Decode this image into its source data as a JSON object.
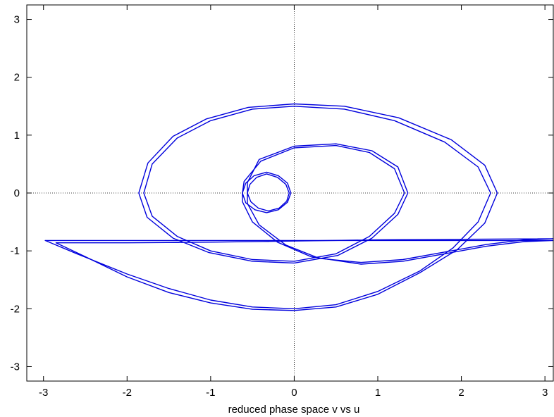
{
  "chart_data": {
    "type": "line",
    "title": "",
    "xlabel": "reduced phase space v vs u",
    "ylabel": "",
    "xlim": [
      -3.2,
      3.1
    ],
    "ylim": [
      -3.25,
      3.25
    ],
    "x_ticks": [
      -3,
      -2,
      -1,
      0,
      1,
      2,
      3
    ],
    "y_ticks": [
      -3,
      -2,
      -1,
      0,
      1,
      2,
      3
    ],
    "zero_lines": true,
    "grid": false,
    "line_color": "#0000dd",
    "series": [
      {
        "label": "",
        "points": [
          [
            -0.62,
            0.0
          ],
          [
            -0.58,
            -0.17
          ],
          [
            -0.47,
            -0.29
          ],
          [
            -0.33,
            -0.34
          ],
          [
            -0.19,
            -0.29
          ],
          [
            -0.08,
            -0.16
          ],
          [
            -0.04,
            0.0
          ],
          [
            -0.08,
            0.17
          ],
          [
            -0.19,
            0.3
          ],
          [
            -0.33,
            0.36
          ],
          [
            -0.48,
            0.3
          ],
          [
            -0.58,
            0.17
          ],
          [
            -0.62,
            0.0
          ],
          [
            -0.62,
            -0.15
          ],
          [
            -0.5,
            -0.5
          ],
          [
            -0.2,
            -0.85
          ],
          [
            0.2,
            -1.1
          ],
          [
            0.8,
            -1.23
          ],
          [
            1.3,
            -1.18
          ],
          [
            1.8,
            -1.05
          ],
          [
            2.3,
            -0.92
          ],
          [
            2.75,
            -0.84
          ],
          [
            3.1,
            -0.82
          ],
          [
            2.0,
            -0.82
          ],
          [
            1.0,
            -0.82
          ],
          [
            0.0,
            -0.82
          ],
          [
            -1.0,
            -0.82
          ],
          [
            -2.0,
            -0.82
          ],
          [
            -2.98,
            -0.82
          ],
          [
            -2.6,
            -1.05
          ],
          [
            -2.0,
            -1.4
          ],
          [
            -1.5,
            -1.65
          ],
          [
            -1.0,
            -1.85
          ],
          [
            -0.5,
            -1.97
          ],
          [
            0.0,
            -2.0
          ],
          [
            0.5,
            -1.93
          ],
          [
            1.0,
            -1.7
          ],
          [
            1.5,
            -1.35
          ],
          [
            1.9,
            -0.95
          ],
          [
            2.2,
            -0.5
          ],
          [
            2.35,
            0.0
          ],
          [
            2.2,
            0.45
          ],
          [
            1.8,
            0.88
          ],
          [
            1.2,
            1.25
          ],
          [
            0.6,
            1.45
          ],
          [
            0.0,
            1.5
          ],
          [
            -0.5,
            1.45
          ],
          [
            -1.0,
            1.25
          ],
          [
            -1.4,
            0.95
          ],
          [
            -1.7,
            0.5
          ],
          [
            -1.8,
            0.0
          ],
          [
            -1.7,
            -0.4
          ],
          [
            -1.4,
            -0.75
          ],
          [
            -1.0,
            -1.0
          ],
          [
            -0.5,
            -1.15
          ],
          [
            0.0,
            -1.18
          ],
          [
            0.5,
            -1.05
          ],
          [
            0.9,
            -0.75
          ],
          [
            1.2,
            -0.35
          ],
          [
            1.32,
            0.0
          ],
          [
            1.2,
            0.42
          ],
          [
            0.9,
            0.7
          ],
          [
            0.5,
            0.82
          ],
          [
            0.0,
            0.78
          ],
          [
            -0.4,
            0.55
          ],
          [
            -0.6,
            0.2
          ],
          [
            -0.62,
            0.0
          ]
        ]
      },
      {
        "label": "",
        "points": [
          [
            -0.56,
            0.0
          ],
          [
            -0.52,
            -0.15
          ],
          [
            -0.43,
            -0.26
          ],
          [
            -0.31,
            -0.31
          ],
          [
            -0.18,
            -0.26
          ],
          [
            -0.09,
            -0.14
          ],
          [
            -0.06,
            0.0
          ],
          [
            -0.1,
            0.15
          ],
          [
            -0.2,
            0.27
          ],
          [
            -0.33,
            0.33
          ],
          [
            -0.45,
            0.27
          ],
          [
            -0.53,
            0.15
          ],
          [
            -0.56,
            0.0
          ],
          [
            -0.56,
            -0.18
          ],
          [
            -0.42,
            -0.55
          ],
          [
            -0.1,
            -0.9
          ],
          [
            0.3,
            -1.13
          ],
          [
            0.8,
            -1.2
          ],
          [
            1.3,
            -1.15
          ],
          [
            1.8,
            -1.02
          ],
          [
            2.3,
            -0.89
          ],
          [
            2.75,
            -0.81
          ],
          [
            3.1,
            -0.79
          ],
          [
            2.0,
            -0.8
          ],
          [
            1.0,
            -0.81
          ],
          [
            0.0,
            -0.83
          ],
          [
            -1.0,
            -0.85
          ],
          [
            -2.0,
            -0.86
          ],
          [
            -2.85,
            -0.86
          ],
          [
            -2.5,
            -1.1
          ],
          [
            -2.0,
            -1.45
          ],
          [
            -1.5,
            -1.72
          ],
          [
            -1.0,
            -1.9
          ],
          [
            -0.5,
            -2.01
          ],
          [
            0.0,
            -2.03
          ],
          [
            0.5,
            -1.97
          ],
          [
            1.0,
            -1.75
          ],
          [
            1.5,
            -1.38
          ],
          [
            1.95,
            -0.98
          ],
          [
            2.28,
            -0.52
          ],
          [
            2.43,
            0.0
          ],
          [
            2.28,
            0.48
          ],
          [
            1.88,
            0.92
          ],
          [
            1.25,
            1.3
          ],
          [
            0.6,
            1.5
          ],
          [
            0.0,
            1.54
          ],
          [
            -0.55,
            1.48
          ],
          [
            -1.05,
            1.28
          ],
          [
            -1.45,
            0.98
          ],
          [
            -1.75,
            0.52
          ],
          [
            -1.86,
            0.0
          ],
          [
            -1.76,
            -0.42
          ],
          [
            -1.45,
            -0.78
          ],
          [
            -1.02,
            -1.03
          ],
          [
            -0.5,
            -1.18
          ],
          [
            0.0,
            -1.21
          ],
          [
            0.52,
            -1.08
          ],
          [
            0.93,
            -0.78
          ],
          [
            1.24,
            -0.37
          ],
          [
            1.36,
            0.0
          ],
          [
            1.24,
            0.45
          ],
          [
            0.93,
            0.73
          ],
          [
            0.5,
            0.85
          ],
          [
            0.0,
            0.81
          ],
          [
            -0.42,
            0.58
          ],
          [
            -0.56,
            0.18
          ],
          [
            -0.56,
            0.0
          ]
        ]
      }
    ]
  }
}
